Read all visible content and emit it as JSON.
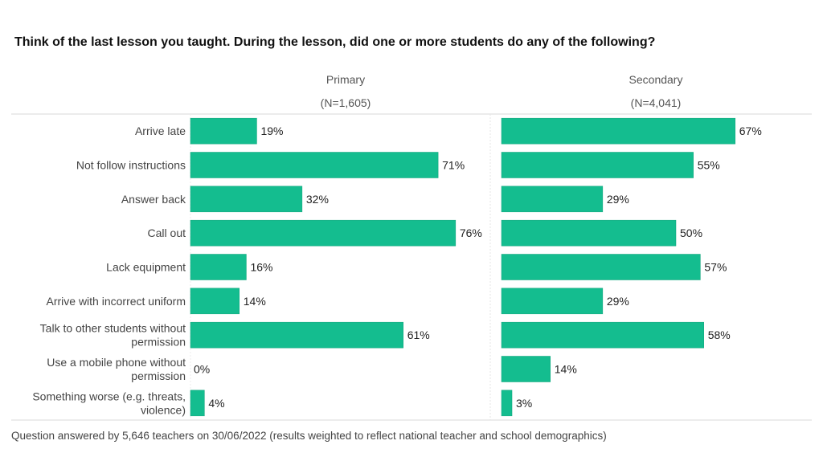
{
  "chart_data": {
    "type": "bar",
    "orientation": "horizontal",
    "title": "Think of the last lesson you taught. During the lesson, did one or more students do any of the following?",
    "categories": [
      [
        "Arrive late"
      ],
      [
        "Not follow instructions"
      ],
      [
        "Answer back"
      ],
      [
        "Call out"
      ],
      [
        "Lack equipment"
      ],
      [
        "Arrive with incorrect uniform"
      ],
      [
        "Talk to other students without",
        "permission"
      ],
      [
        "Use a mobile phone without",
        "permission"
      ],
      [
        "Something worse (e.g. threats,",
        "violence)"
      ]
    ],
    "panels": [
      {
        "name": "Primary",
        "subtitle": "(N=1,605)",
        "values": [
          19,
          71,
          32,
          76,
          16,
          14,
          61,
          0,
          4
        ]
      },
      {
        "name": "Secondary",
        "subtitle": "(N=4,041)",
        "values": [
          67,
          55,
          29,
          50,
          57,
          29,
          58,
          14,
          3
        ]
      }
    ],
    "value_suffix": "%",
    "xlim": [
      0,
      80
    ],
    "grid": false,
    "bar_color": "#14bd8f",
    "footnote": "Question answered by 5,646 teachers on 30/06/2022 (results weighted to reflect national teacher and school demographics)"
  }
}
